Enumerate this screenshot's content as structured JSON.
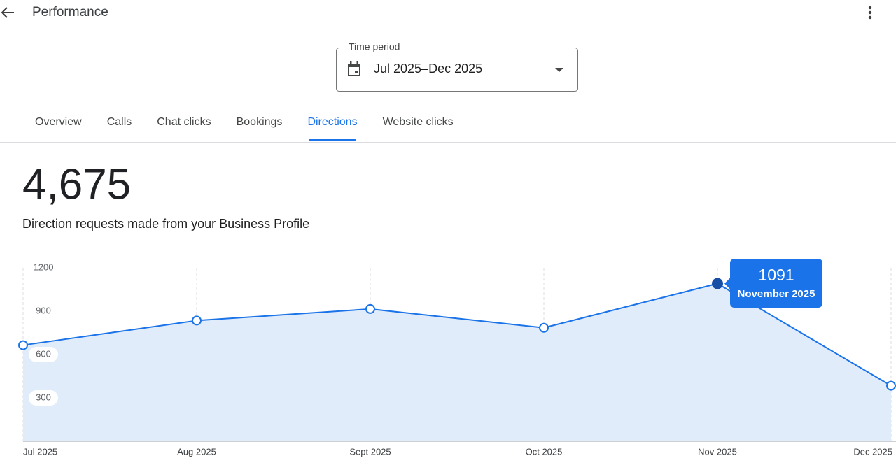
{
  "header": {
    "title": "Performance"
  },
  "time_period": {
    "label": "Time period",
    "value": "Jul 2025–Dec 2025"
  },
  "tabs": [
    {
      "label": "Overview",
      "selected": false
    },
    {
      "label": "Calls",
      "selected": false
    },
    {
      "label": "Chat clicks",
      "selected": false
    },
    {
      "label": "Bookings",
      "selected": false
    },
    {
      "label": "Directions",
      "selected": true
    },
    {
      "label": "Website clicks",
      "selected": false
    }
  ],
  "summary": {
    "total": "4,675",
    "description": "Direction requests made from your Business Profile"
  },
  "chart_data": {
    "type": "line",
    "categories": [
      "Jul 2025",
      "Aug 2025",
      "Sept 2025",
      "Oct 2025",
      "Nov 2025",
      "Dec 2025"
    ],
    "series": [
      {
        "name": "Direction requests",
        "color": "#1a73e8",
        "values": [
          665,
          835,
          915,
          785,
          1091,
          384
        ]
      }
    ],
    "ylim": [
      0,
      1200
    ],
    "yticks": [
      300,
      600,
      900,
      1200
    ],
    "grid": true,
    "area": true,
    "tooltip": {
      "index": 4,
      "label": "November 2025"
    }
  }
}
